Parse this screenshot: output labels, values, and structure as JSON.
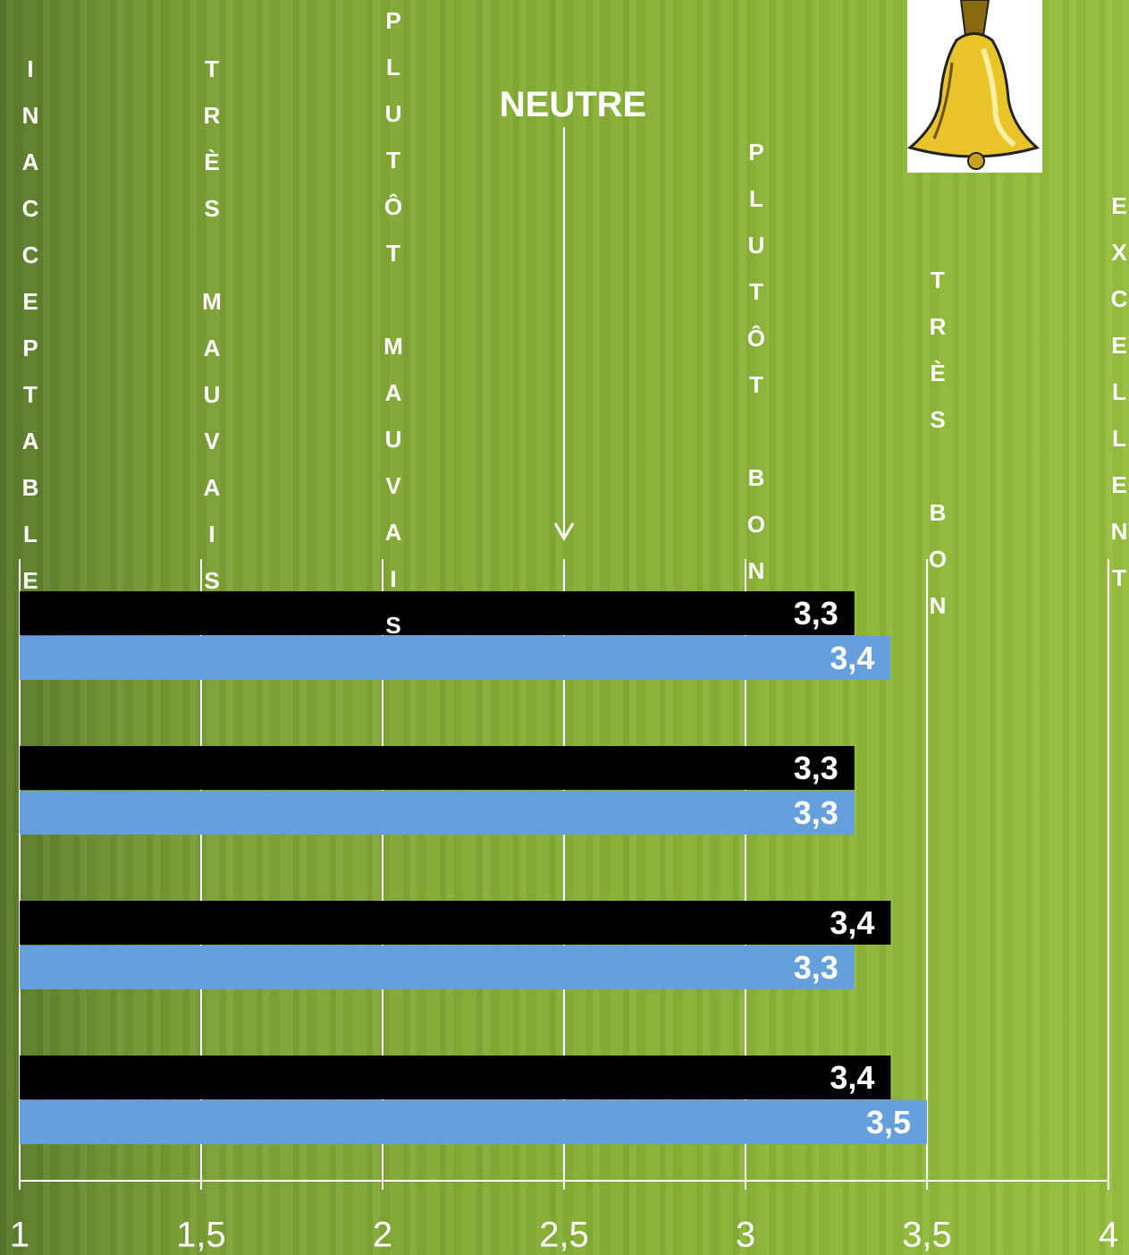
{
  "chart_data": {
    "type": "hbar",
    "categories": [
      null,
      null,
      null,
      null
    ],
    "series": [
      {
        "color": "#000000",
        "values": [
          3.3,
          3.3,
          3.4,
          3.4
        ],
        "value_labels": [
          "3,3",
          "3,3",
          "3,4",
          "3,4"
        ]
      },
      {
        "color": "#66a0dc",
        "values": [
          3.4,
          3.3,
          3.3,
          3.5
        ],
        "value_labels": [
          "3,4",
          "3,3",
          "3,3",
          "3,5"
        ]
      }
    ],
    "xlim": [
      1,
      4
    ],
    "xticks": [
      1,
      {
        "value": 1.5,
        "label": "1,5"
      },
      2,
      {
        "value": 2.5,
        "label": "2,5"
      },
      3,
      {
        "value": 3.5,
        "label": "3,5"
      },
      4
    ],
    "grid": true,
    "scale_labels": [
      {
        "text": "INACCEPTABLE"
      },
      {
        "text": "TRÈS MAUVAIS"
      },
      {
        "text": "PLUTÔT MAUVAIS"
      },
      {
        "text": "NEUTRE",
        "arrow": true
      },
      {
        "text": "PLUTÔT BON"
      },
      {
        "text": "TRÈS BON"
      },
      {
        "text": "EXCELLENT"
      }
    ]
  }
}
